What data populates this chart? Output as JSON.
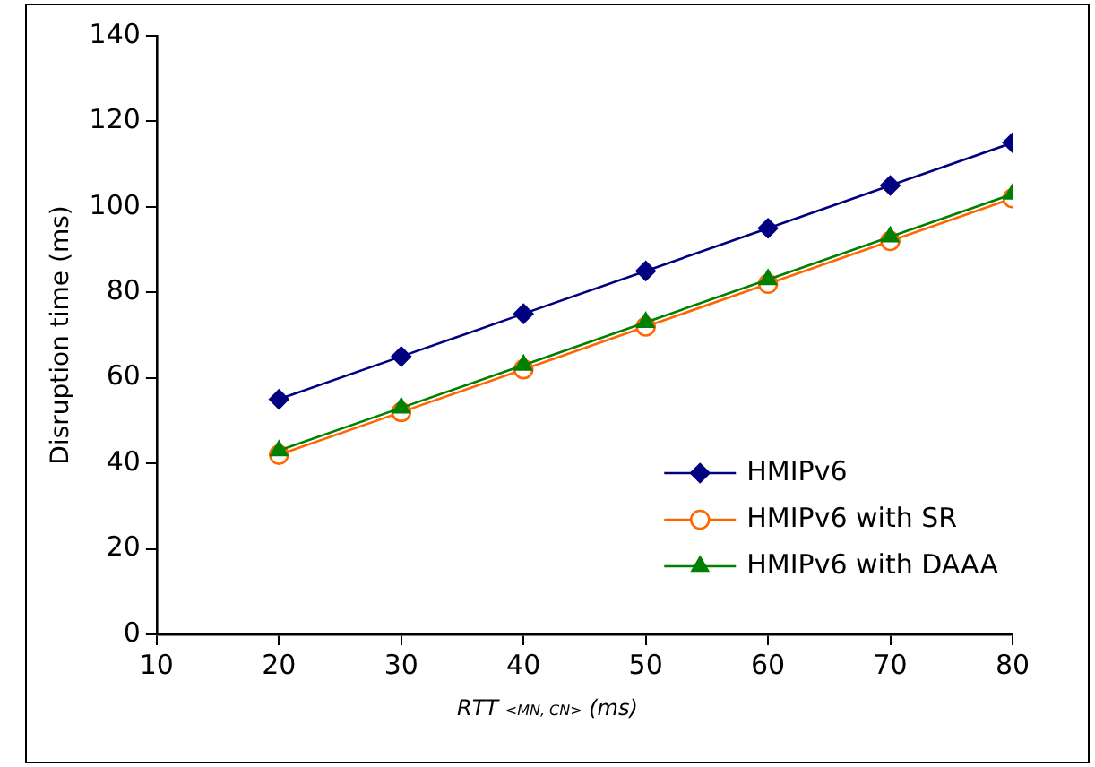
{
  "chart_data": {
    "type": "line",
    "xlabel": "RTT $_{<MN, CN>}$ (ms)",
    "ylabel": "Disruption time (ms)",
    "x": [
      20,
      30,
      40,
      50,
      60,
      70,
      80
    ],
    "series": [
      {
        "name": "HMIPv6",
        "color": "#000080",
        "marker": "diamond",
        "values": [
          55,
          65,
          75,
          85,
          95,
          105,
          115
        ]
      },
      {
        "name": "HMIPv6 with SR",
        "color": "#ff6600",
        "marker": "circle",
        "values": [
          42,
          52,
          62,
          72,
          82,
          92,
          102
        ]
      },
      {
        "name": "HMIPv6 with DAAA",
        "color": "#008000",
        "marker": "triangle",
        "values": [
          43,
          53,
          63,
          73,
          83,
          93,
          103
        ]
      }
    ],
    "xlim": [
      10,
      80
    ],
    "xticks": [
      10,
      20,
      30,
      40,
      50,
      60,
      70,
      80
    ],
    "ylim": [
      0,
      140
    ],
    "yticks": [
      0,
      20,
      40,
      60,
      80,
      100,
      120,
      140
    ],
    "grid": false,
    "legend": "bottom right"
  }
}
